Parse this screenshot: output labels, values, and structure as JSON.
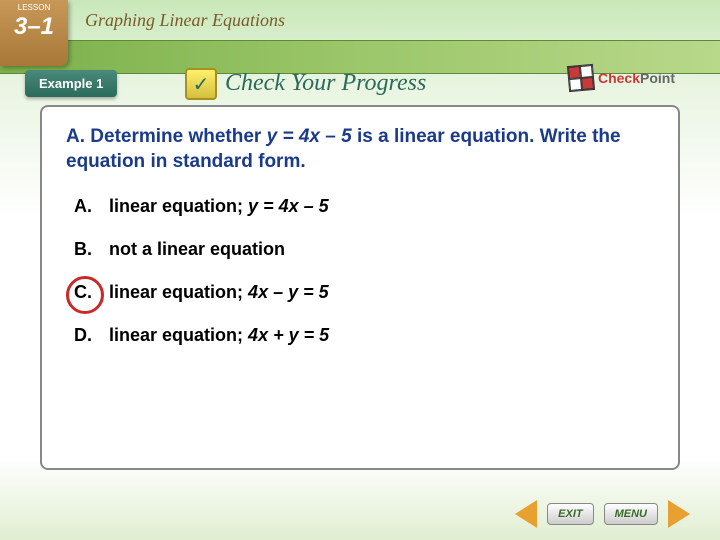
{
  "lesson": {
    "label_top": "LESSON",
    "number": "3–1",
    "title": "Graphing Linear Equations"
  },
  "example_badge": "Example 1",
  "check_progress": "Check Your Progress",
  "checkpoint": {
    "red": "Check",
    "gray": "Point"
  },
  "question": {
    "prefix": "A.",
    "text_before": "Determine whether ",
    "equation": "y = 4x – 5",
    "text_after": " is a linear equation. Write the equation in standard form."
  },
  "choices": [
    {
      "letter": "A.",
      "text": "linear equation; ",
      "eq": "y = 4x – 5",
      "circled": false
    },
    {
      "letter": "B.",
      "text": "not a linear equation",
      "eq": "",
      "circled": false
    },
    {
      "letter": "C.",
      "text": "linear equation; ",
      "eq": "4x – y = 5",
      "circled": true
    },
    {
      "letter": "D.",
      "text": "linear equation; ",
      "eq": "4x + y = 5",
      "circled": false
    }
  ],
  "nav": {
    "exit": "EXIT",
    "menu": "MENU"
  },
  "colors": {
    "question_color": "#1a3a8a",
    "circle_color": "#c82a2a",
    "badge_bg": "#2a6a5a",
    "arrow_color": "#e8a030"
  }
}
